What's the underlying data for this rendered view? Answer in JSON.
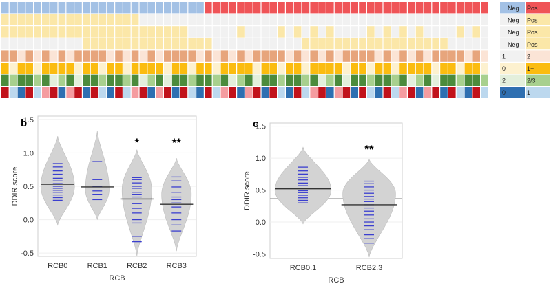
{
  "colors": {
    "neg": "#a3c1e5",
    "pos": "#ef5457",
    "cream": "#fbe7a8",
    "empty": "#f1f1f1",
    "tan_dark": "#e7a57c",
    "tan_light": "#fbe4d6",
    "gold": "#fbbc10",
    "gold_light": "#fdf1cf",
    "green_dark": "#4c8b3c",
    "green_light": "#a8d08e",
    "green_pale": "#e3efdc",
    "red_dark": "#c1121b",
    "red_light": "#f59ca0",
    "blue_dark": "#2e6fb1",
    "blue_light": "#bcd8ee",
    "violin": "#d3d3d3",
    "dot": "#3b3fcf",
    "median": "#333333"
  },
  "heatmap": {
    "columns": 60,
    "split_column": 25,
    "legend": [
      {
        "left_label": "Neg",
        "right_label": "Pos"
      },
      {
        "left_label": "Neg",
        "right_label": "Pos"
      },
      {
        "left_label": "Neg",
        "right_label": "Pos"
      },
      {
        "left_label": "Neg",
        "right_label": "Pos"
      },
      {
        "left_label": "1",
        "right_label": "2"
      },
      {
        "left_label": "0",
        "right_label": "1+"
      },
      {
        "left_label": "2",
        "right_label": "2/3"
      },
      {
        "left_label": "0",
        "right_label": "1"
      }
    ]
  },
  "chart_data": [
    {
      "type": "violin",
      "panel_label": "b",
      "xlabel": "RCB",
      "ylabel": "DDIR score",
      "ylim": [
        -0.55,
        1.55
      ],
      "yticks": [
        "1.5",
        "1.0",
        "0.5",
        "0.0",
        "-0.5"
      ],
      "ytick_values": [
        1.5,
        1.0,
        0.5,
        0.0,
        -0.5
      ],
      "threshold": 0.37,
      "categories": [
        "RCB0",
        "RCB1",
        "RCB2",
        "RCB3"
      ],
      "medians": [
        0.53,
        0.49,
        0.31,
        0.23
      ],
      "annotations": [
        "",
        "",
        "*",
        "**"
      ],
      "points": [
        [
          0.84,
          0.79,
          0.73,
          0.68,
          0.62,
          0.58,
          0.54,
          0.5,
          0.47,
          0.44,
          0.41,
          0.37,
          0.33,
          0.29
        ],
        [
          0.87,
          0.6,
          0.5,
          0.43,
          0.38,
          0.3
        ],
        [
          0.63,
          0.6,
          0.55,
          0.5,
          0.47,
          0.41,
          0.38,
          0.34,
          0.24,
          0.17,
          0.1,
          0.0,
          -0.05,
          -0.25,
          -0.33
        ],
        [
          0.64,
          0.58,
          0.49,
          0.41,
          0.34,
          0.3,
          0.25,
          0.19,
          0.1,
          0.0,
          -0.08,
          -0.17
        ]
      ],
      "violins": [
        {
          "min": -0.08,
          "max": 1.25,
          "peak": 0.5,
          "width": 0.85
        },
        {
          "min": 0.0,
          "max": 1.33,
          "peak": 0.45,
          "width": 0.6
        },
        {
          "min": -0.55,
          "max": 1.05,
          "peak": 0.45,
          "width": 0.75
        },
        {
          "min": -0.47,
          "max": 0.92,
          "peak": 0.38,
          "width": 0.75
        }
      ]
    },
    {
      "type": "violin",
      "panel_label": "c",
      "xlabel": "RCB",
      "ylabel": "DDIR score",
      "ylim": [
        -0.57,
        1.55
      ],
      "yticks": [
        "1.5",
        "1.0",
        "0.5",
        "0.0",
        "-0.5"
      ],
      "ytick_values": [
        1.5,
        1.0,
        0.5,
        0.0,
        -0.5
      ],
      "threshold": 0.37,
      "categories": [
        "RCB0.1",
        "RCB2.3"
      ],
      "medians": [
        0.52,
        0.27
      ],
      "annotations": [
        "",
        "**"
      ],
      "points": [
        [
          0.86,
          0.8,
          0.75,
          0.7,
          0.66,
          0.61,
          0.57,
          0.53,
          0.49,
          0.46,
          0.42,
          0.38,
          0.34,
          0.3
        ],
        [
          0.64,
          0.6,
          0.55,
          0.5,
          0.45,
          0.4,
          0.36,
          0.32,
          0.27,
          0.22,
          0.17,
          0.11,
          0.05,
          0.0,
          -0.06,
          -0.12,
          -0.2,
          -0.26,
          -0.33
        ]
      ],
      "violins": [
        {
          "min": -0.03,
          "max": 1.17,
          "peak": 0.5,
          "width": 0.85
        },
        {
          "min": -0.55,
          "max": 0.98,
          "peak": 0.45,
          "width": 0.8
        }
      ]
    }
  ]
}
